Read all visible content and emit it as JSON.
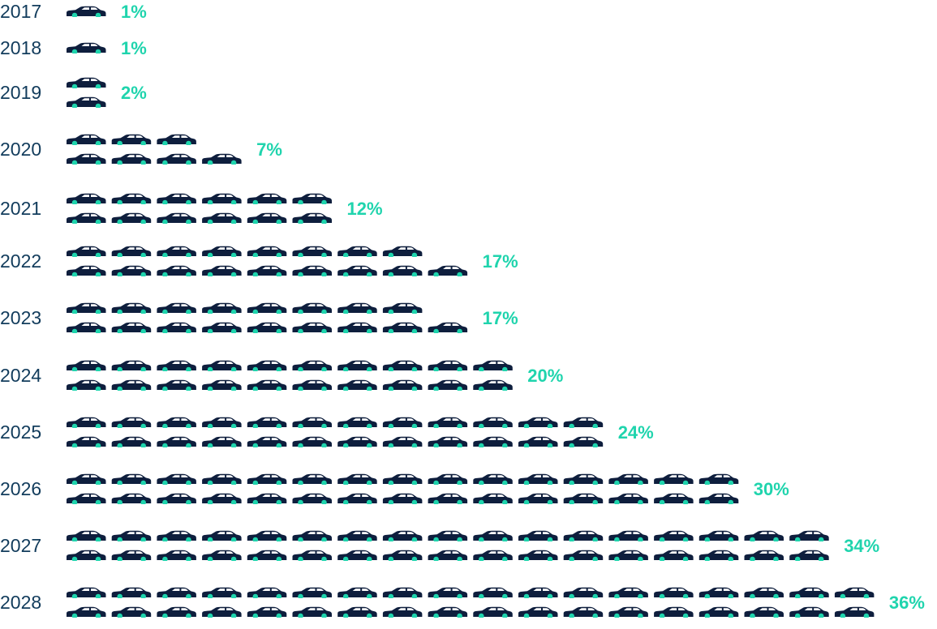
{
  "colors": {
    "car_body": "#0e1e3d",
    "wheel": "#1fd4ad",
    "year_text": "#123c5c",
    "percent_text": "#1fd4ad",
    "background": "#ffffff"
  },
  "icons": {
    "unit": "car-icon"
  },
  "chart_data": {
    "type": "pictograph",
    "title": "",
    "xlabel": "",
    "ylabel": "",
    "unit": "car",
    "categories": [
      "2017",
      "2018",
      "2019",
      "2020",
      "2021",
      "2022",
      "2023",
      "2024",
      "2025",
      "2026",
      "2027",
      "2028"
    ],
    "values": [
      1,
      1,
      2,
      7,
      12,
      17,
      17,
      20,
      24,
      30,
      34,
      36
    ],
    "labels": [
      "1%",
      "1%",
      "2%",
      "7%",
      "12%",
      "17%",
      "17%",
      "20%",
      "24%",
      "30%",
      "34%",
      "36%"
    ],
    "icon_counts": [
      1,
      1,
      2,
      7,
      12,
      17,
      17,
      20,
      24,
      30,
      34,
      36
    ]
  }
}
